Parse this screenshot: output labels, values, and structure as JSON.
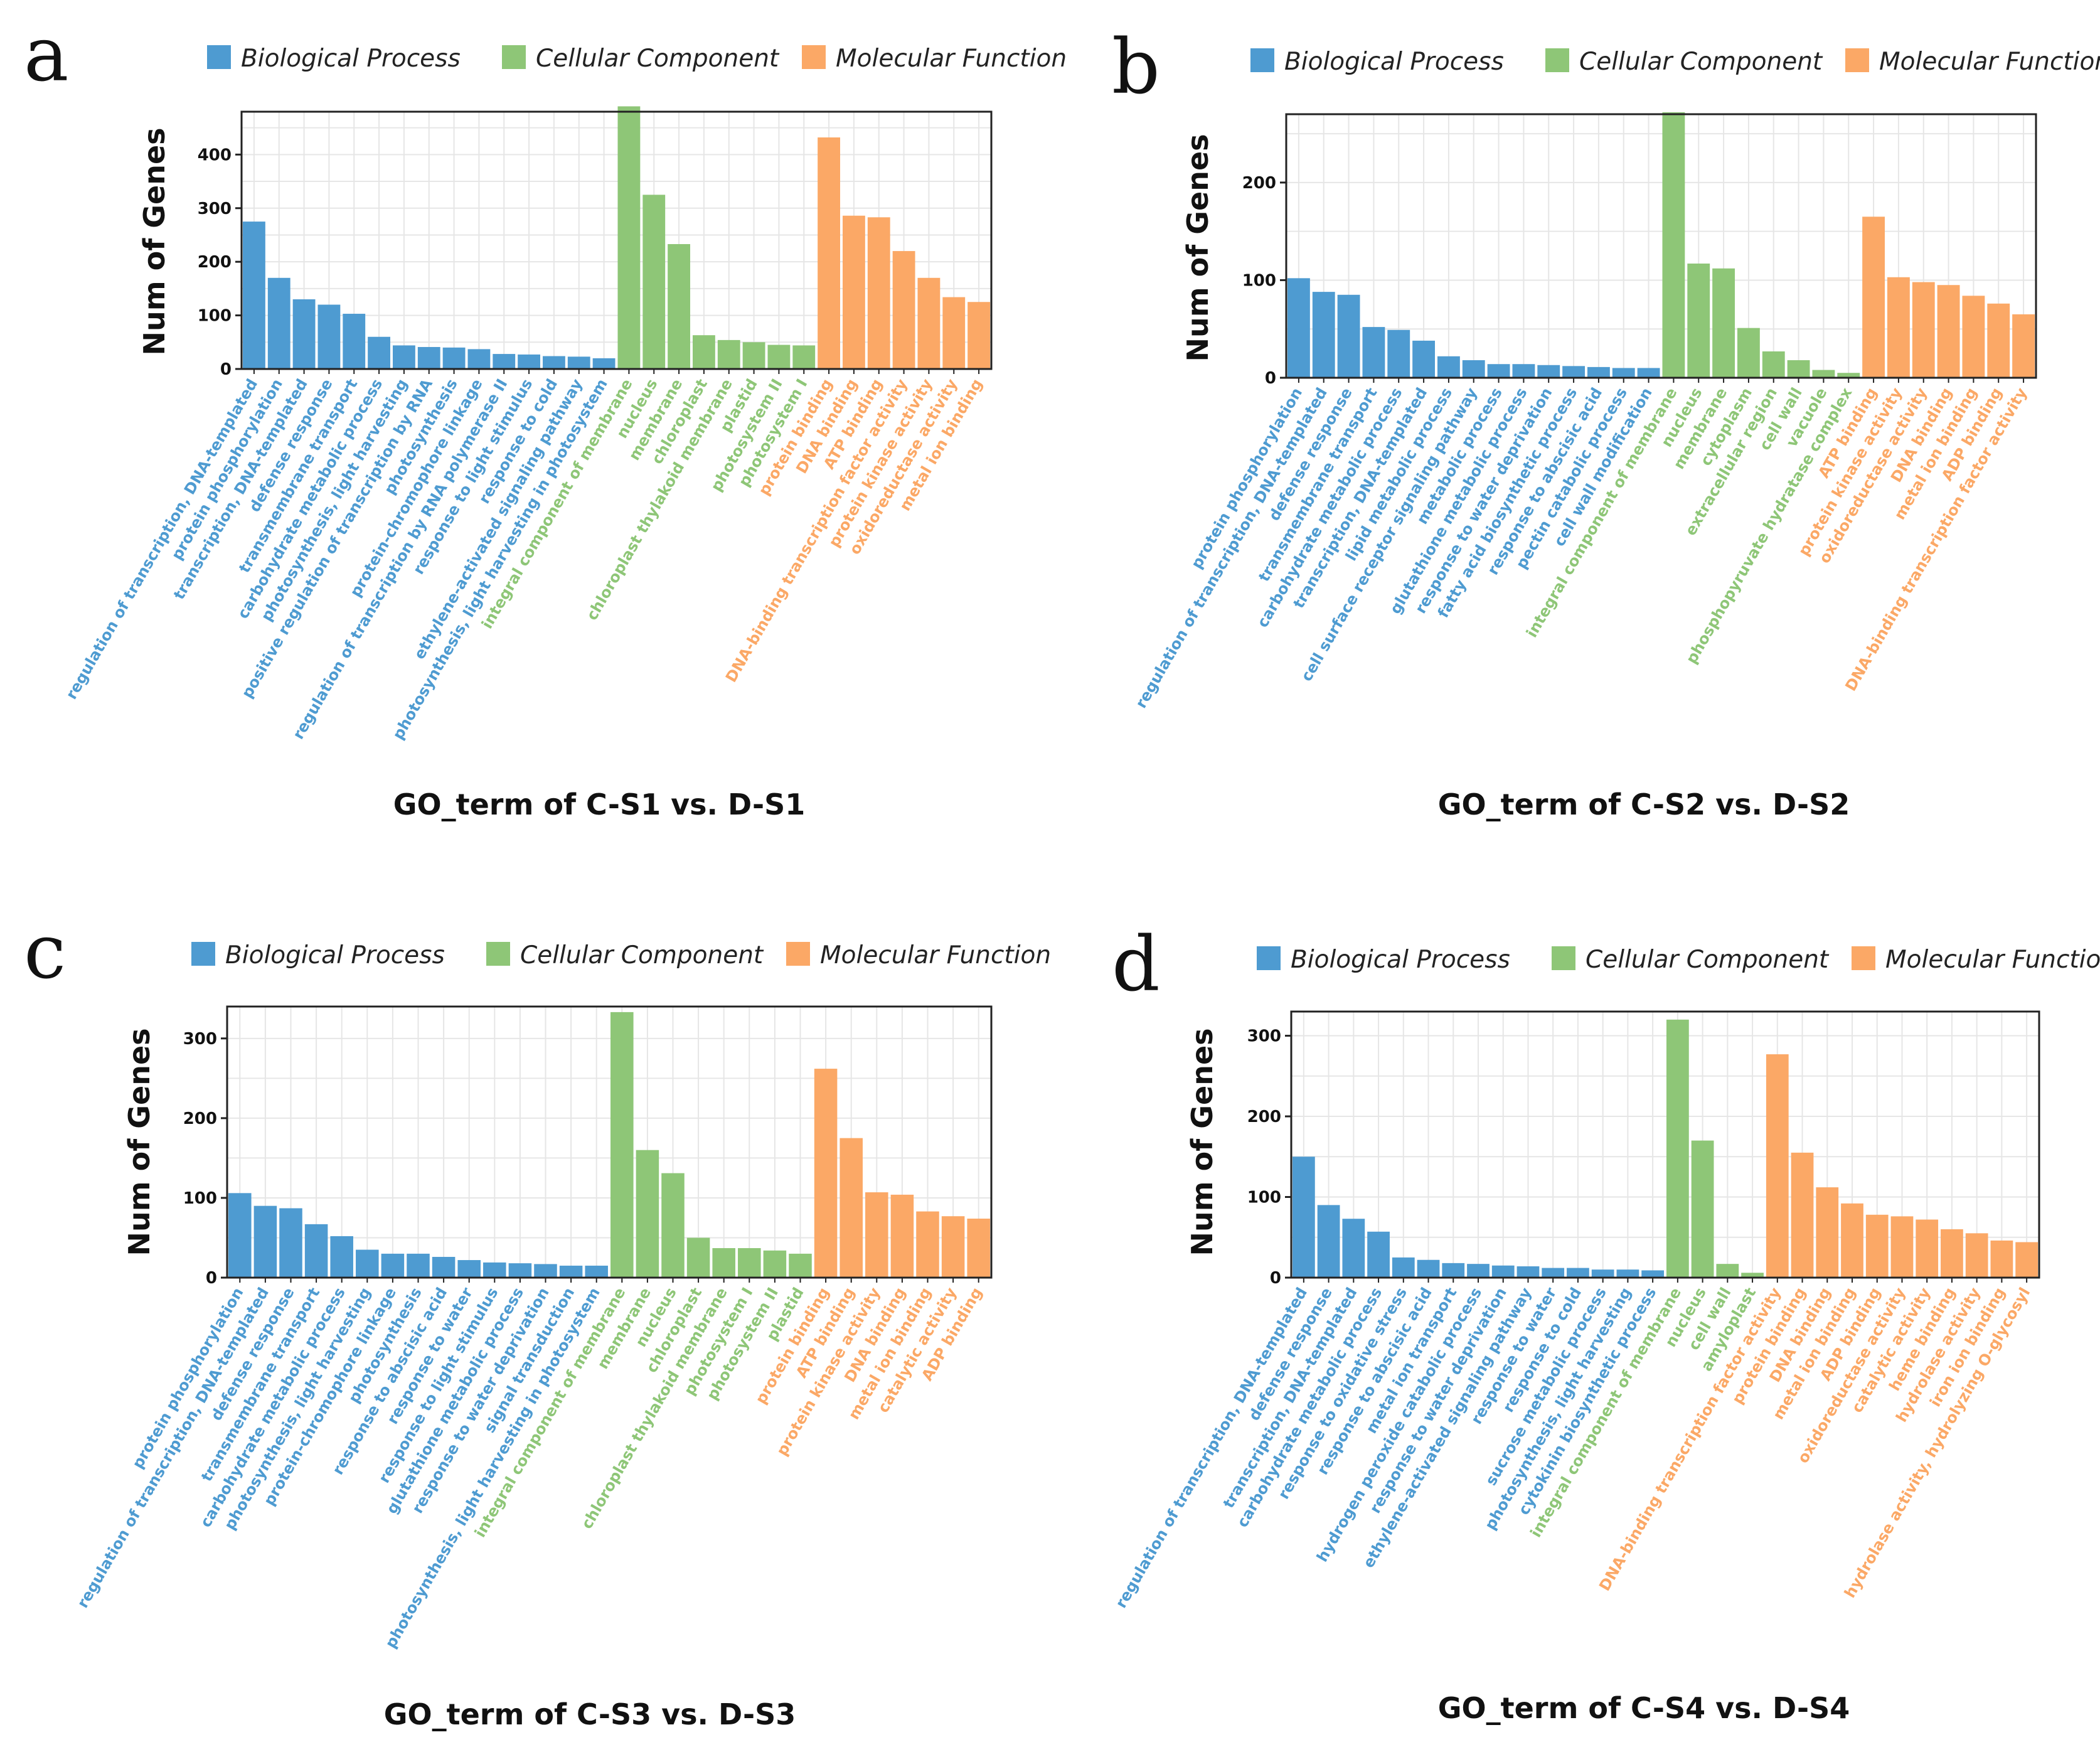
{
  "colors": {
    "Biological Process": "#4e9bd1",
    "Cellular Component": "#8ec677",
    "Molecular Function": "#fba866"
  },
  "legend": [
    "Biological Process",
    "Cellular Component",
    "Molecular Function"
  ],
  "chart_data": [
    {
      "panel": "a",
      "type": "bar",
      "title": "",
      "xlabel": "GO_term of C-S1 vs. D-S1",
      "ylabel": "Num of Genes",
      "ylim": [
        0,
        480
      ],
      "yticks": [
        0,
        100,
        200,
        300,
        400
      ],
      "categories": [
        "regulation of transcription, DNA-templated",
        "protein phosphorylation",
        "transcription, DNA-templated",
        "defense response",
        "transmembrane transport",
        "carbohydrate metabolic process",
        "photosynthesis, light harvesting",
        "positive regulation of transcription by RNA",
        "photosynthesis",
        "protein-chromophore linkage",
        "regulation of transcription by RNA polymerase II",
        "response to light stimulus",
        "response to cold",
        "ethylene-activated signaling pathway",
        "photosynthesis, light harvesting in photosystem",
        "integral component of membrane",
        "nucleus",
        "membrane",
        "chloroplast",
        "chloroplast thylakoid membrane",
        "plastid",
        "photosystem II",
        "photosystem I",
        "protein binding",
        "DNA binding",
        "ATP binding",
        "DNA-binding transcription factor activity",
        "protein kinase activity",
        "oxidoreductase activity",
        "metal ion binding"
      ],
      "groups": [
        "Biological Process",
        "Biological Process",
        "Biological Process",
        "Biological Process",
        "Biological Process",
        "Biological Process",
        "Biological Process",
        "Biological Process",
        "Biological Process",
        "Biological Process",
        "Biological Process",
        "Biological Process",
        "Biological Process",
        "Biological Process",
        "Biological Process",
        "Cellular Component",
        "Cellular Component",
        "Cellular Component",
        "Cellular Component",
        "Cellular Component",
        "Cellular Component",
        "Cellular Component",
        "Cellular Component",
        "Molecular Function",
        "Molecular Function",
        "Molecular Function",
        "Molecular Function",
        "Molecular Function",
        "Molecular Function",
        "Molecular Function"
      ],
      "values": [
        275,
        170,
        130,
        120,
        103,
        60,
        44,
        41,
        40,
        37,
        28,
        27,
        24,
        23,
        20,
        490,
        325,
        233,
        63,
        54,
        50,
        45,
        44,
        432,
        286,
        283,
        220,
        170,
        134,
        125
      ]
    },
    {
      "panel": "b",
      "type": "bar",
      "title": "",
      "xlabel": "GO_term of C-S2 vs. D-S2",
      "ylabel": "Num of Genes",
      "ylim": [
        0,
        270
      ],
      "yticks": [
        0,
        100,
        200
      ],
      "categories": [
        "protein phosphorylation",
        "regulation of transcription, DNA-templated",
        "defense response",
        "transmembrane transport",
        "carbohydrate metabolic process",
        "transcription, DNA-templated",
        "lipid metabolic process",
        "cell surface receptor signaling pathway",
        "metabolic process",
        "glutathione metabolic process",
        "response to water deprivation",
        "fatty acid biosynthetic process",
        "response to abscisic acid",
        "pectin catabolic process",
        "cell wall modification",
        "integral component of membrane",
        "nucleus",
        "membrane",
        "cytoplasm",
        "extracellular region",
        "cell wall",
        "vacuole",
        "phosphopyruvate hydratase complex",
        "ATP binding",
        "protein kinase activity",
        "oxidoreductase activity",
        "DNA binding",
        "metal ion binding",
        "ADP binding",
        "DNA-binding transcription factor activity"
      ],
      "groups": [
        "Biological Process",
        "Biological Process",
        "Biological Process",
        "Biological Process",
        "Biological Process",
        "Biological Process",
        "Biological Process",
        "Biological Process",
        "Biological Process",
        "Biological Process",
        "Biological Process",
        "Biological Process",
        "Biological Process",
        "Biological Process",
        "Biological Process",
        "Cellular Component",
        "Cellular Component",
        "Cellular Component",
        "Cellular Component",
        "Cellular Component",
        "Cellular Component",
        "Cellular Component",
        "Cellular Component",
        "Molecular Function",
        "Molecular Function",
        "Molecular Function",
        "Molecular Function",
        "Molecular Function",
        "Molecular Function",
        "Molecular Function"
      ],
      "values": [
        102,
        88,
        85,
        52,
        49,
        38,
        22,
        18,
        14,
        14,
        13,
        12,
        11,
        10,
        10,
        272,
        117,
        112,
        51,
        27,
        18,
        8,
        5,
        165,
        103,
        98,
        95,
        84,
        76,
        65
      ]
    },
    {
      "panel": "c",
      "type": "bar",
      "title": "",
      "xlabel": "GO_term of C-S3 vs. D-S3",
      "ylabel": "Num of Genes",
      "ylim": [
        0,
        340
      ],
      "yticks": [
        0,
        100,
        200,
        300
      ],
      "categories": [
        "protein phosphorylation",
        "regulation of transcription, DNA-templated",
        "defense response",
        "transmembrane transport",
        "carbohydrate metabolic process",
        "photosynthesis, light harvesting",
        "protein-chromophore linkage",
        "photosynthesis",
        "response to abscisic acid",
        "response to water",
        "response to light stimulus",
        "glutathione metabolic process",
        "response to water deprivation",
        "signal transduction",
        "photosynthesis, light harvesting in photosystem",
        "integral component of membrane",
        "membrane",
        "nucleus",
        "chloroplast",
        "chloroplast thylakoid membrane",
        "photosystem I",
        "photosystem II",
        "plastid",
        "protein binding",
        "ATP binding",
        "protein kinase activity",
        "DNA binding",
        "metal ion binding",
        "catalytic activity",
        "ADP binding"
      ],
      "groups": [
        "Biological Process",
        "Biological Process",
        "Biological Process",
        "Biological Process",
        "Biological Process",
        "Biological Process",
        "Biological Process",
        "Biological Process",
        "Biological Process",
        "Biological Process",
        "Biological Process",
        "Biological Process",
        "Biological Process",
        "Biological Process",
        "Biological Process",
        "Cellular Component",
        "Cellular Component",
        "Cellular Component",
        "Cellular Component",
        "Cellular Component",
        "Cellular Component",
        "Cellular Component",
        "Cellular Component",
        "Molecular Function",
        "Molecular Function",
        "Molecular Function",
        "Molecular Function",
        "Molecular Function",
        "Molecular Function",
        "Molecular Function"
      ],
      "values": [
        106,
        90,
        87,
        67,
        52,
        35,
        30,
        30,
        26,
        22,
        19,
        18,
        17,
        15,
        15,
        333,
        160,
        131,
        50,
        37,
        37,
        34,
        30,
        262,
        175,
        107,
        104,
        83,
        77,
        74
      ]
    },
    {
      "panel": "d",
      "type": "bar",
      "title": "",
      "xlabel": "GO_term of C-S4 vs. D-S4",
      "ylabel": "Num of Genes",
      "ylim": [
        0,
        330
      ],
      "yticks": [
        0,
        100,
        200,
        300
      ],
      "categories": [
        "regulation of transcription, DNA-templated",
        "defense response",
        "transcription, DNA-templated",
        "carbohydrate metabolic process",
        "response to oxidative stress",
        "response to abscisic acid",
        "metal ion transport",
        "hydrogen peroxide catabolic process",
        "response to water deprivation",
        "ethylene-activated signaling pathway",
        "response to water",
        "response to cold",
        "sucrose metabolic process",
        "photosynthesis, light harvesting",
        "cytokinin biosynthetic process",
        "integral component of membrane",
        "nucleus",
        "cell wall",
        "amyloplast",
        "DNA-binding transcription factor activity",
        "protein binding",
        "DNA binding",
        "metal ion binding",
        "ADP binding",
        "oxidoreductase activity",
        "catalytic activity",
        "heme binding",
        "hydrolase activity",
        "iron ion binding",
        "hydrolase activity, hydrolyzing O-glycosyl"
      ],
      "groups": [
        "Biological Process",
        "Biological Process",
        "Biological Process",
        "Biological Process",
        "Biological Process",
        "Biological Process",
        "Biological Process",
        "Biological Process",
        "Biological Process",
        "Biological Process",
        "Biological Process",
        "Biological Process",
        "Biological Process",
        "Biological Process",
        "Biological Process",
        "Cellular Component",
        "Cellular Component",
        "Cellular Component",
        "Cellular Component",
        "Molecular Function",
        "Molecular Function",
        "Molecular Function",
        "Molecular Function",
        "Molecular Function",
        "Molecular Function",
        "Molecular Function",
        "Molecular Function",
        "Molecular Function",
        "Molecular Function",
        "Molecular Function"
      ],
      "values": [
        150,
        90,
        73,
        57,
        25,
        22,
        18,
        17,
        15,
        14,
        12,
        12,
        10,
        10,
        9,
        320,
        170,
        17,
        6,
        277,
        155,
        112,
        92,
        78,
        76,
        72,
        60,
        55,
        46,
        44
      ]
    }
  ]
}
